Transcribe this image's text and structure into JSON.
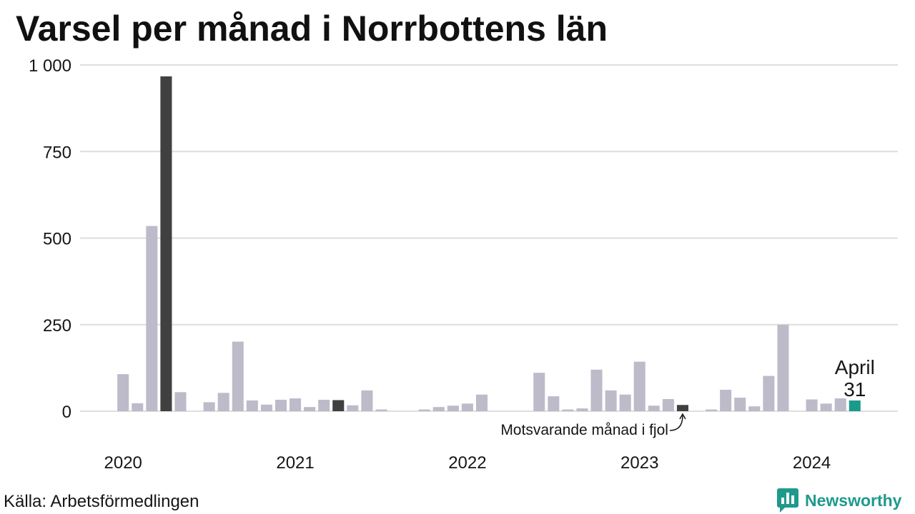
{
  "chart_data": {
    "type": "bar",
    "title": "Varsel per månad i Norrbottens län",
    "x": [
      "2020-01",
      "2020-02",
      "2020-03",
      "2020-04",
      "2020-05",
      "2020-06",
      "2020-07",
      "2020-08",
      "2020-09",
      "2020-10",
      "2020-11",
      "2020-12",
      "2021-01",
      "2021-02",
      "2021-03",
      "2021-04",
      "2021-05",
      "2021-06",
      "2021-07",
      "2021-08",
      "2021-09",
      "2021-10",
      "2021-11",
      "2021-12",
      "2022-01",
      "2022-02",
      "2022-03",
      "2022-04",
      "2022-05",
      "2022-06",
      "2022-07",
      "2022-08",
      "2022-09",
      "2022-10",
      "2022-11",
      "2022-12",
      "2023-01",
      "2023-02",
      "2023-03",
      "2023-04",
      "2023-05",
      "2023-06",
      "2023-07",
      "2023-08",
      "2023-09",
      "2023-10",
      "2023-11",
      "2023-12",
      "2024-01",
      "2024-02",
      "2024-03",
      "2024-04"
    ],
    "values": [
      107,
      23,
      535,
      967,
      55,
      0,
      26,
      53,
      201,
      31,
      19,
      33,
      37,
      12,
      33,
      32,
      17,
      60,
      5,
      0,
      0,
      5,
      12,
      16,
      22,
      48,
      0,
      0,
      0,
      111,
      43,
      5,
      8,
      120,
      60,
      48,
      143,
      16,
      35,
      18,
      0,
      5,
      62,
      39,
      14,
      102,
      250,
      0,
      34,
      22,
      37,
      31
    ],
    "ylim": [
      0,
      1000
    ],
    "yticks": [
      0,
      250,
      500,
      750,
      1000
    ],
    "ytick_labels": [
      "0",
      "250",
      "500",
      "750",
      "1 000"
    ],
    "xtick_labels": [
      "2020",
      "2021",
      "2022",
      "2023",
      "2024"
    ],
    "grid": true,
    "legend": false,
    "colors": {
      "bar": "#bdbbc9",
      "same_month": "#404040",
      "latest": "#1a9a8b",
      "grid": "#dedede"
    },
    "annotations": [
      {
        "text": "Motsvarande månad i fjol",
        "target": "2023-04"
      },
      {
        "text": "April",
        "value_label": "31",
        "target": "2024-04"
      }
    ]
  },
  "source": "Källa: Arbetsförmedlingen",
  "logo": {
    "text": "Newsworthy",
    "icon": "newsworthy-bar-chart-icon",
    "color": "#1e9a8c"
  }
}
